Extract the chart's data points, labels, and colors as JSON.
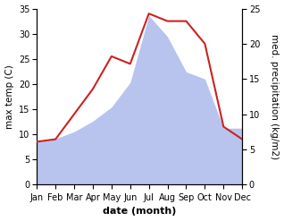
{
  "months": [
    "Jan",
    "Feb",
    "Mar",
    "Apr",
    "May",
    "Jun",
    "Jul",
    "Aug",
    "Sep",
    "Oct",
    "Nov",
    "Dec"
  ],
  "temp_max": [
    8.5,
    9.0,
    14.0,
    19.0,
    25.5,
    24.0,
    34.0,
    32.5,
    32.5,
    28.0,
    11.5,
    9.0
  ],
  "precipitation": [
    6.0,
    6.5,
    7.5,
    9.0,
    11.0,
    14.5,
    24.0,
    21.0,
    16.0,
    15.0,
    8.0,
    8.0
  ],
  "temp_color": "#cc2222",
  "precip_fill_color": "#b8c4ee",
  "bg_color": "#ffffff",
  "xlabel": "date (month)",
  "ylabel_left": "max temp (C)",
  "ylabel_right": "med. precipitation (kg/m2)",
  "ylim_left": [
    0,
    35
  ],
  "ylim_right": [
    0,
    25
  ],
  "yticks_left": [
    0,
    5,
    10,
    15,
    20,
    25,
    30,
    35
  ],
  "yticks_right": [
    0,
    5,
    10,
    15,
    20,
    25
  ],
  "xlabel_fontsize": 8,
  "ylabel_fontsize": 7.5,
  "tick_fontsize": 7
}
